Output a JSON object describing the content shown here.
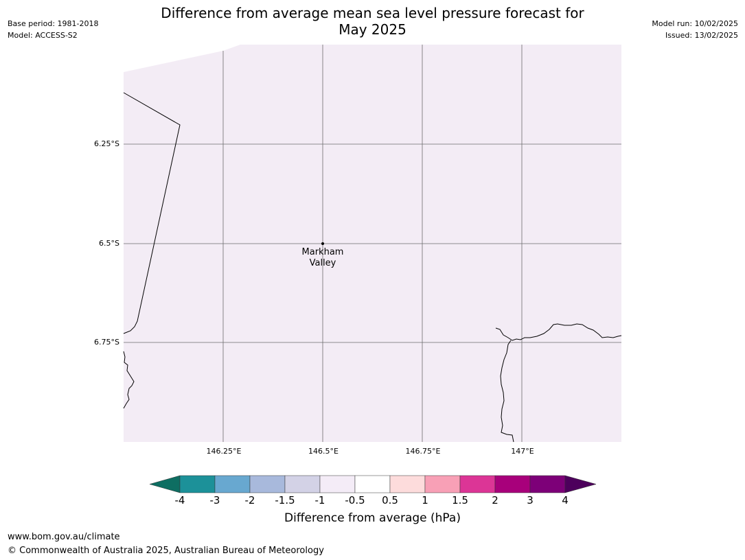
{
  "header": {
    "title_line1": "Difference from average mean sea level pressure forecast for",
    "title_line2": "May 2025",
    "base_period": "Base period: 1981-2018",
    "model": "Model: ACCESS-S2",
    "model_run": "Model run: 10/02/2025",
    "issued": "Issued: 13/02/2025"
  },
  "map": {
    "lat_ticks": [
      "6.25°S",
      "6.5°S",
      "6.75°S"
    ],
    "lon_ticks": [
      "146.25°E",
      "146.5°E",
      "146.75°E",
      "147°E"
    ],
    "place": {
      "name_line1": "Markham",
      "name_line2": "Valley",
      "lat": -6.5,
      "lon": 146.5
    },
    "fill_color": "#f3ecf5",
    "coastline_color": "#000000",
    "gridline_color": "#555555"
  },
  "colorbar": {
    "title": "Difference from average (hPa)",
    "labels": [
      "-4",
      "-3",
      "-2",
      "-1.5",
      "-1",
      "-0.5",
      "0.5",
      "1",
      "1.5",
      "2",
      "3",
      "4"
    ],
    "colors": [
      "#0e6e62",
      "#1c9199",
      "#68a8d0",
      "#a8b9dc",
      "#d3d2e6",
      "#f4ecf7",
      "#ffffff",
      "#fddcdc",
      "#f8a0b6",
      "#dc3596",
      "#a8007b",
      "#7d0078",
      "#4d005c"
    ]
  },
  "footer": {
    "url": "www.bom.gov.au/climate",
    "copyright": "© Commonwealth of Australia 2025, Australian Bureau of Meteorology"
  }
}
